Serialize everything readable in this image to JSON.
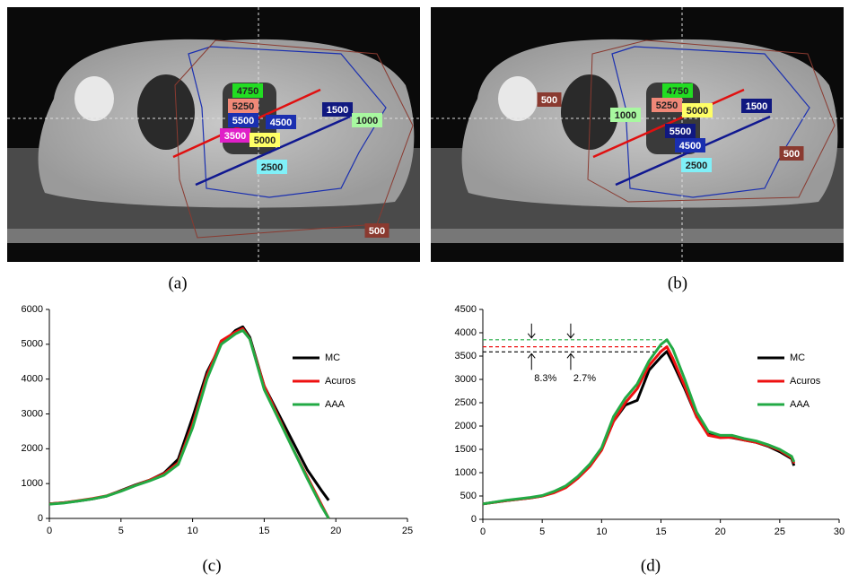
{
  "images": [
    {
      "caption": "(a)",
      "isodose_labels": [
        {
          "text": "4750",
          "color": "#22dd22"
        },
        {
          "text": "5250",
          "color": "#f08878"
        },
        {
          "text": "5500",
          "color": "#1a2fb0"
        },
        {
          "text": "4500",
          "color": "#1a2fb0"
        },
        {
          "text": "3500",
          "color": "#e020c8"
        },
        {
          "text": "5000",
          "color": "#ffff66"
        },
        {
          "text": "2500",
          "color": "#80f0f8"
        },
        {
          "text": "1500",
          "color": "#101880"
        },
        {
          "text": "1000",
          "color": "#a8f8a0"
        },
        {
          "text": "500",
          "color": "#8a3a30"
        }
      ]
    },
    {
      "caption": "(b)",
      "isodose_labels": [
        {
          "text": "500",
          "color": "#8a3a30"
        },
        {
          "text": "1000",
          "color": "#a8f8a0"
        },
        {
          "text": "5250",
          "color": "#f08878"
        },
        {
          "text": "4750",
          "color": "#22dd22"
        },
        {
          "text": "5000",
          "color": "#ffff66"
        },
        {
          "text": "5500",
          "color": "#101880"
        },
        {
          "text": "4500",
          "color": "#1a2fb0"
        },
        {
          "text": "1500",
          "color": "#101880"
        },
        {
          "text": "2500",
          "color": "#80f0f8"
        },
        {
          "text": "500",
          "color": "#8a3a30"
        }
      ]
    }
  ],
  "chart_data": [
    {
      "type": "line",
      "caption": "(c)",
      "legend": "right",
      "x": [
        0,
        1,
        2,
        3,
        4,
        5,
        6,
        7,
        8,
        9,
        10,
        11,
        12,
        13,
        13.5,
        14,
        15,
        16,
        17,
        18,
        19,
        19.5
      ],
      "series": [
        {
          "name": "MC",
          "color": "#000000",
          "values": [
            420,
            450,
            500,
            560,
            640,
            800,
            960,
            1100,
            1300,
            1700,
            2900,
            4200,
            5000,
            5400,
            5500,
            5200,
            3800,
            3000,
            2200,
            1400,
            800,
            520
          ]
        },
        {
          "name": "Acuros",
          "color": "#ee1111",
          "values": [
            420,
            450,
            510,
            570,
            650,
            790,
            950,
            1100,
            1280,
            1600,
            2700,
            4100,
            5100,
            5350,
            5450,
            5150,
            3800,
            2900,
            2000,
            1200,
            400,
            0
          ]
        },
        {
          "name": "AAA",
          "color": "#22aa44",
          "values": [
            410,
            440,
            500,
            560,
            640,
            780,
            940,
            1080,
            1240,
            1550,
            2600,
            4000,
            5000,
            5300,
            5400,
            5150,
            3700,
            2850,
            2000,
            1150,
            350,
            0
          ]
        }
      ],
      "xlim": [
        0,
        25
      ],
      "xticks": [
        0,
        5,
        10,
        15,
        20,
        25
      ],
      "ylim": [
        0,
        6000
      ],
      "yticks": [
        0,
        1000,
        2000,
        3000,
        4000,
        5000,
        6000
      ]
    },
    {
      "type": "line",
      "caption": "(d)",
      "legend": "right",
      "x": [
        0,
        2,
        4,
        5,
        6,
        7,
        8,
        9,
        10,
        11,
        12,
        13,
        14,
        15,
        15.5,
        16,
        17,
        18,
        19,
        20,
        21,
        22,
        23,
        24,
        25,
        26,
        26.2
      ],
      "series": [
        {
          "name": "MC",
          "color": "#000000",
          "values": [
            330,
            400,
            460,
            500,
            580,
            700,
            900,
            1150,
            1500,
            2100,
            2450,
            2550,
            3200,
            3480,
            3600,
            3350,
            2800,
            2200,
            1850,
            1780,
            1750,
            1700,
            1650,
            1570,
            1450,
            1300,
            1150
          ]
        },
        {
          "name": "Acuros",
          "color": "#ee1111",
          "values": [
            330,
            400,
            460,
            500,
            570,
            680,
            880,
            1130,
            1480,
            2100,
            2500,
            2800,
            3300,
            3600,
            3700,
            3450,
            2850,
            2200,
            1800,
            1750,
            1760,
            1700,
            1650,
            1580,
            1480,
            1320,
            1200
          ]
        },
        {
          "name": "AAA",
          "color": "#22aa44",
          "values": [
            330,
            410,
            470,
            510,
            600,
            720,
            920,
            1180,
            1530,
            2200,
            2600,
            2900,
            3400,
            3750,
            3850,
            3650,
            3000,
            2300,
            1880,
            1800,
            1800,
            1730,
            1680,
            1600,
            1500,
            1350,
            1230
          ]
        }
      ],
      "reference_lines": [
        {
          "value": 3590,
          "color": "#000000"
        },
        {
          "value": 3700,
          "color": "#ee1111"
        },
        {
          "value": 3850,
          "color": "#22aa44"
        }
      ],
      "annotations": [
        "8.3%",
        "2.7%"
      ],
      "xlim": [
        0,
        30
      ],
      "xticks": [
        0,
        5,
        10,
        15,
        20,
        25,
        30
      ],
      "ylim": [
        0,
        4500
      ],
      "yticks": [
        0,
        500,
        1000,
        1500,
        2000,
        2500,
        3000,
        3500,
        4000,
        4500
      ]
    }
  ]
}
